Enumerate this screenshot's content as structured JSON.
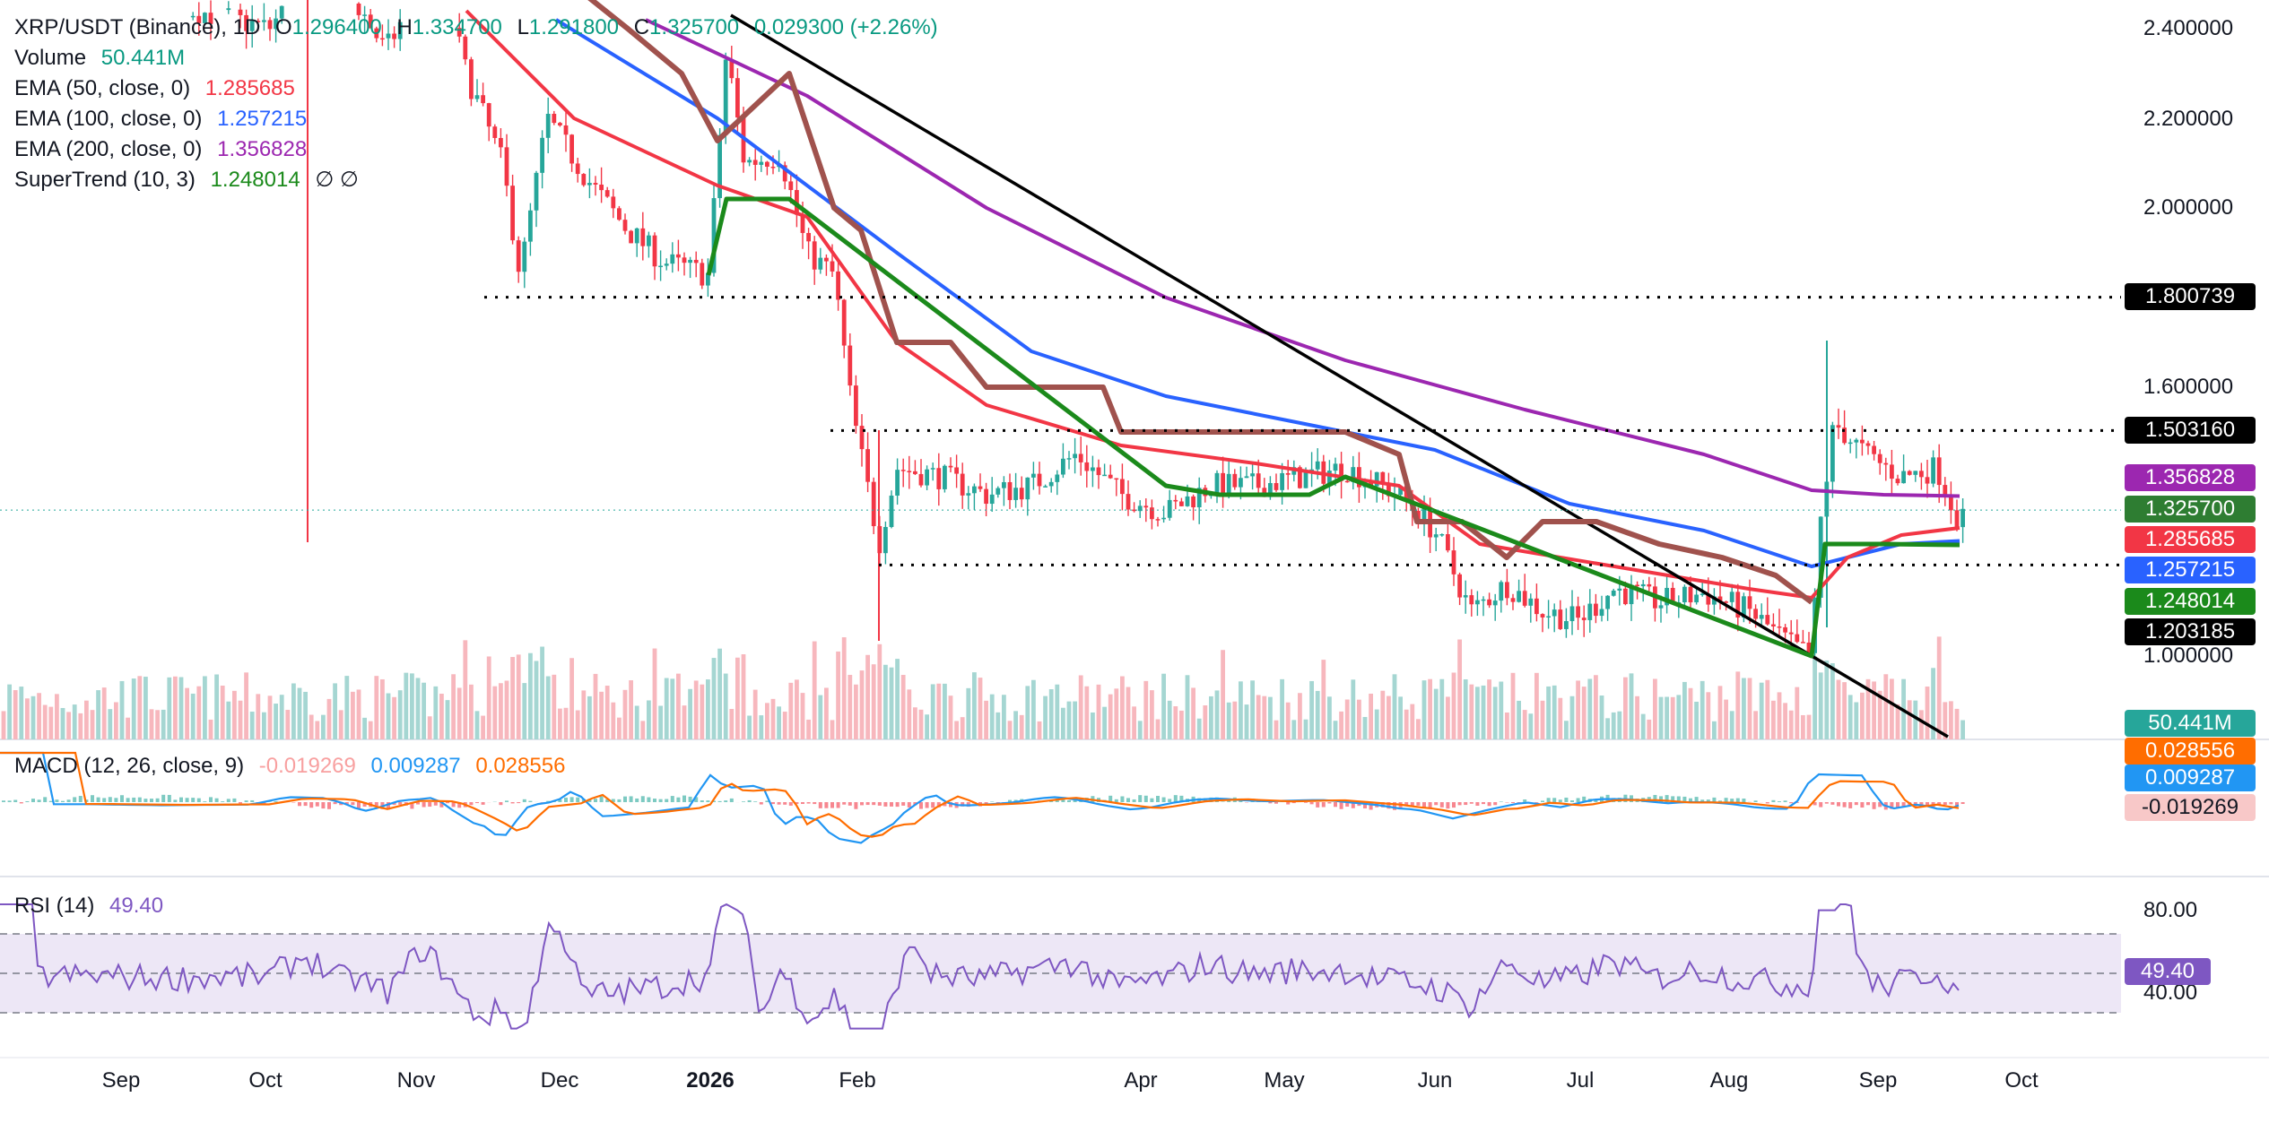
{
  "chart_data": {
    "type": "candlestick",
    "symbol": "XRP/USDT (Binance), 1D",
    "ohlc": {
      "o_label": "O",
      "o": "1.296400",
      "h_label": "H",
      "h": "1.334700",
      "l_label": "L",
      "l": "1.291800",
      "c_label": "C",
      "c": "1.325700",
      "change": "0.029300 (+2.26%)"
    },
    "volume": {
      "label": "Volume",
      "value": "50.441M"
    },
    "indicators": [
      {
        "name": "EMA (50, close, 0)",
        "value": "1.285685",
        "color": "#f23645"
      },
      {
        "name": "EMA (100, close, 0)",
        "value": "1.257215",
        "color": "#2962ff"
      },
      {
        "name": "EMA (200, close, 0)",
        "value": "1.356828",
        "color": "#9c27b0"
      },
      {
        "name": "SuperTrend (10, 3)",
        "value": "1.248014",
        "color": "#1b8a1b",
        "extra": "∅ ∅"
      }
    ],
    "price_axis": {
      "ticks": [
        "2.400000",
        "2.200000",
        "2.000000",
        "1.600000",
        "1.000000"
      ],
      "range": [
        0.8,
        2.4
      ]
    },
    "price_labels": [
      {
        "value": "1.800739",
        "bg": "#000000"
      },
      {
        "value": "1.503160",
        "bg": "#000000"
      },
      {
        "value": "1.356828",
        "bg": "#9c27b0"
      },
      {
        "value": "1.325700",
        "bg": "#2e7d32"
      },
      {
        "value": "1.285685",
        "bg": "#f23645"
      },
      {
        "value": "1.257215",
        "bg": "#2962ff"
      },
      {
        "value": "1.248014",
        "bg": "#1b8a1b"
      },
      {
        "value": "1.203185",
        "bg": "#000000"
      },
      {
        "value": "50.441M",
        "bg": "#26a69a"
      }
    ],
    "horizontal_levels": [
      1.800739,
      1.50316,
      1.203185
    ],
    "macd": {
      "name": "MACD (12, 26, close, 9)",
      "histogram": "-0.019269",
      "macd": "0.009287",
      "signal": "0.028556",
      "labels": [
        {
          "value": "0.028556",
          "bg": "#ff6d00"
        },
        {
          "value": "0.009287",
          "bg": "#2196f3"
        },
        {
          "value": "-0.019269",
          "bg": "#f8c8c8",
          "fg": "#131722"
        }
      ]
    },
    "rsi": {
      "name": "RSI (14)",
      "value": "49.40",
      "ticks": [
        "80.00",
        "40.00"
      ],
      "bands": [
        70,
        50,
        30
      ],
      "color": "#7e57c2"
    },
    "x_axis": {
      "ticks": [
        "Sep",
        "Oct",
        "Nov",
        "Dec",
        "2026",
        "Feb",
        "Apr",
        "May",
        "Jun",
        "Jul",
        "Aug",
        "Sep",
        "Oct"
      ]
    },
    "colors": {
      "up": "#26a69a",
      "down": "#f23645",
      "trendline": "#000000",
      "cloud": "#a0524d"
    }
  }
}
